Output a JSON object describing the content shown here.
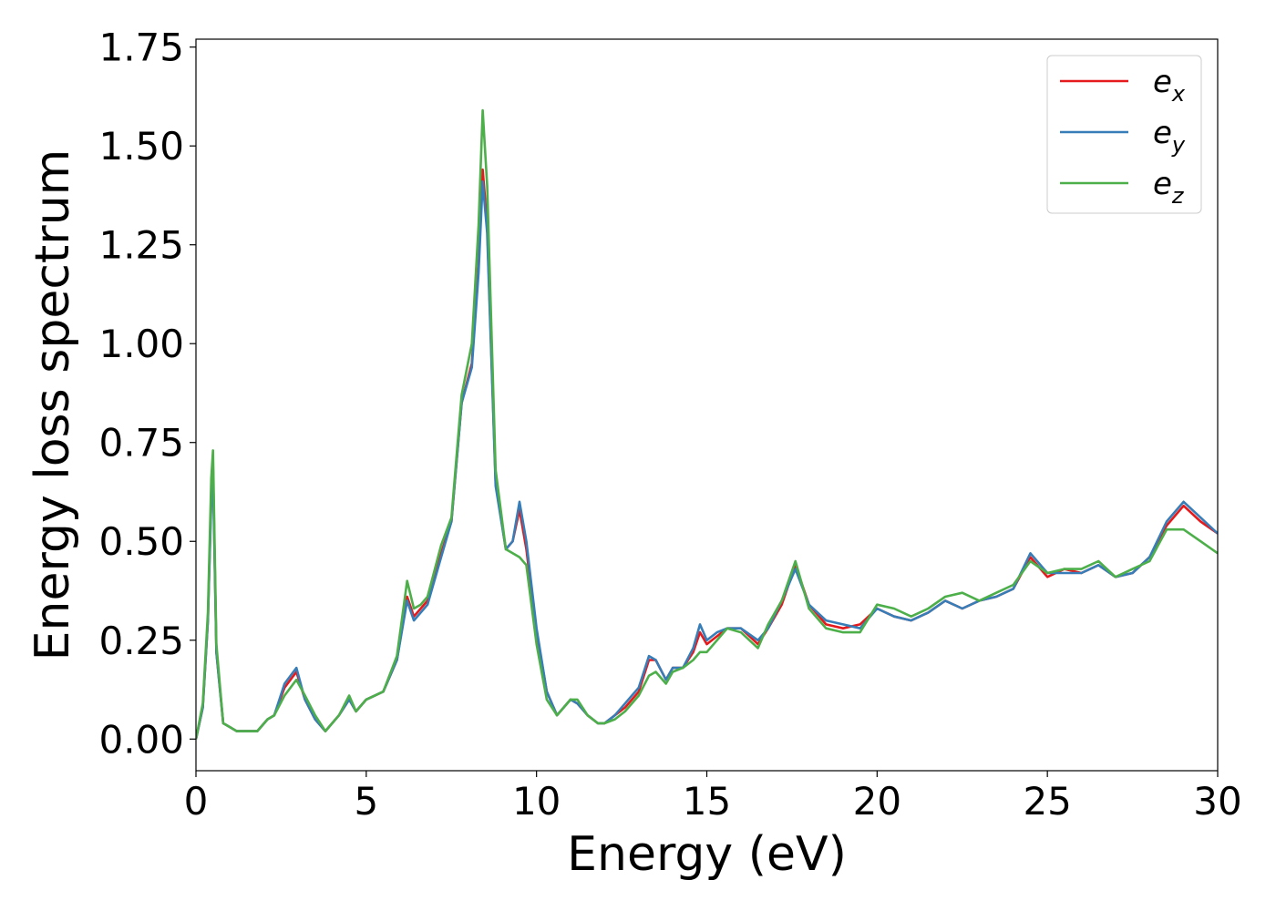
{
  "chart_data": {
    "type": "line",
    "title": "",
    "xlabel": "Energy (eV)",
    "ylabel": "Energy loss spectrum",
    "xlim": [
      0,
      30
    ],
    "ylim": [
      -0.08,
      1.77
    ],
    "x_ticks": [
      0,
      5,
      10,
      15,
      20,
      25,
      30
    ],
    "x_tick_labels": [
      "0",
      "5",
      "10",
      "15",
      "20",
      "25",
      "30"
    ],
    "y_ticks": [
      0.0,
      0.25,
      0.5,
      0.75,
      1.0,
      1.25,
      1.5,
      1.75
    ],
    "y_tick_labels": [
      "0.00",
      "0.25",
      "0.50",
      "0.75",
      "1.00",
      "1.25",
      "1.50",
      "1.75"
    ],
    "grid": false,
    "legend": {
      "placement": "top-right",
      "entries": [
        {
          "base": "e",
          "sub": "x",
          "color": "#e41a1c"
        },
        {
          "base": "e",
          "sub": "y",
          "color": "#377eb8"
        },
        {
          "base": "e",
          "sub": "z",
          "color": "#4daf4a"
        }
      ]
    },
    "series": [
      {
        "name": "e_x",
        "color": "#e41a1c",
        "x": [
          0,
          0.2,
          0.35,
          0.45,
          0.5,
          0.6,
          0.8,
          1.2,
          1.8,
          2.1,
          2.3,
          2.6,
          2.95,
          3.2,
          3.5,
          3.8,
          4.2,
          4.5,
          4.7,
          5.0,
          5.5,
          5.9,
          6.2,
          6.4,
          6.6,
          6.8,
          7.2,
          7.5,
          7.8,
          8.1,
          8.3,
          8.42,
          8.55,
          8.8,
          9.1,
          9.3,
          9.5,
          9.7,
          10.0,
          10.3,
          10.6,
          11.0,
          11.2,
          11.5,
          11.8,
          12.0,
          12.3,
          12.6,
          13.0,
          13.3,
          13.5,
          13.8,
          14.0,
          14.3,
          14.6,
          14.8,
          15.0,
          15.3,
          15.6,
          16.0,
          16.5,
          16.8,
          17.2,
          17.6,
          18.0,
          18.5,
          19.0,
          19.5,
          20.0,
          20.5,
          21.0,
          21.5,
          22.0,
          22.5,
          23.0,
          23.5,
          24.0,
          24.5,
          25.0,
          25.5,
          26.0,
          26.5,
          27.0,
          27.5,
          28.0,
          28.5,
          29.0,
          29.5,
          30.0
        ],
        "values": [
          0.0,
          0.08,
          0.3,
          0.62,
          0.69,
          0.22,
          0.04,
          0.02,
          0.02,
          0.05,
          0.06,
          0.13,
          0.17,
          0.1,
          0.05,
          0.02,
          0.06,
          0.1,
          0.07,
          0.1,
          0.12,
          0.2,
          0.36,
          0.31,
          0.33,
          0.35,
          0.47,
          0.55,
          0.85,
          0.95,
          1.2,
          1.44,
          1.3,
          0.65,
          0.48,
          0.5,
          0.58,
          0.48,
          0.27,
          0.12,
          0.06,
          0.1,
          0.09,
          0.06,
          0.04,
          0.04,
          0.06,
          0.08,
          0.12,
          0.2,
          0.2,
          0.15,
          0.18,
          0.18,
          0.22,
          0.27,
          0.24,
          0.26,
          0.28,
          0.28,
          0.24,
          0.28,
          0.34,
          0.44,
          0.34,
          0.29,
          0.28,
          0.29,
          0.33,
          0.31,
          0.3,
          0.32,
          0.35,
          0.33,
          0.35,
          0.36,
          0.38,
          0.46,
          0.41,
          0.43,
          0.42,
          0.44,
          0.41,
          0.42,
          0.46,
          0.54,
          0.59,
          0.55,
          0.52
        ]
      },
      {
        "name": "e_y",
        "color": "#377eb8",
        "x": [
          0,
          0.2,
          0.35,
          0.45,
          0.5,
          0.6,
          0.8,
          1.2,
          1.8,
          2.1,
          2.3,
          2.6,
          2.95,
          3.2,
          3.5,
          3.8,
          4.2,
          4.5,
          4.7,
          5.0,
          5.5,
          5.9,
          6.2,
          6.4,
          6.6,
          6.8,
          7.2,
          7.5,
          7.8,
          8.1,
          8.3,
          8.42,
          8.55,
          8.8,
          9.1,
          9.3,
          9.5,
          9.7,
          10.0,
          10.3,
          10.6,
          11.0,
          11.2,
          11.5,
          11.8,
          12.0,
          12.3,
          12.6,
          13.0,
          13.3,
          13.5,
          13.8,
          14.0,
          14.3,
          14.6,
          14.8,
          15.0,
          15.3,
          15.6,
          16.0,
          16.5,
          16.8,
          17.2,
          17.6,
          18.0,
          18.5,
          19.0,
          19.5,
          20.0,
          20.5,
          21.0,
          21.5,
          22.0,
          22.5,
          23.0,
          23.5,
          24.0,
          24.5,
          25.0,
          25.5,
          26.0,
          26.5,
          27.0,
          27.5,
          28.0,
          28.5,
          29.0,
          29.5,
          30.0
        ],
        "values": [
          0.0,
          0.08,
          0.3,
          0.6,
          0.67,
          0.22,
          0.04,
          0.02,
          0.02,
          0.05,
          0.06,
          0.14,
          0.18,
          0.1,
          0.05,
          0.02,
          0.06,
          0.1,
          0.07,
          0.1,
          0.12,
          0.2,
          0.35,
          0.3,
          0.32,
          0.34,
          0.46,
          0.55,
          0.85,
          0.94,
          1.18,
          1.41,
          1.28,
          0.64,
          0.48,
          0.5,
          0.6,
          0.5,
          0.28,
          0.12,
          0.06,
          0.1,
          0.09,
          0.06,
          0.04,
          0.04,
          0.06,
          0.09,
          0.13,
          0.21,
          0.2,
          0.15,
          0.18,
          0.18,
          0.23,
          0.29,
          0.25,
          0.27,
          0.28,
          0.28,
          0.25,
          0.28,
          0.35,
          0.43,
          0.34,
          0.3,
          0.29,
          0.28,
          0.33,
          0.31,
          0.3,
          0.32,
          0.35,
          0.33,
          0.35,
          0.36,
          0.38,
          0.47,
          0.42,
          0.42,
          0.42,
          0.44,
          0.41,
          0.42,
          0.46,
          0.55,
          0.6,
          0.56,
          0.52
        ]
      },
      {
        "name": "e_z",
        "color": "#4daf4a",
        "x": [
          0,
          0.2,
          0.35,
          0.45,
          0.5,
          0.6,
          0.8,
          1.2,
          1.8,
          2.1,
          2.3,
          2.6,
          2.95,
          3.2,
          3.5,
          3.8,
          4.2,
          4.5,
          4.7,
          5.0,
          5.5,
          5.9,
          6.2,
          6.4,
          6.6,
          6.8,
          7.2,
          7.5,
          7.8,
          8.1,
          8.3,
          8.42,
          8.55,
          8.8,
          9.1,
          9.3,
          9.5,
          9.7,
          10.0,
          10.3,
          10.6,
          11.0,
          11.2,
          11.5,
          11.8,
          12.0,
          12.3,
          12.6,
          13.0,
          13.3,
          13.5,
          13.8,
          14.0,
          14.3,
          14.6,
          14.8,
          15.0,
          15.3,
          15.6,
          16.0,
          16.5,
          16.8,
          17.2,
          17.6,
          18.0,
          18.5,
          19.0,
          19.5,
          20.0,
          20.5,
          21.0,
          21.5,
          22.0,
          22.5,
          23.0,
          23.5,
          24.0,
          24.5,
          25.0,
          25.5,
          26.0,
          26.5,
          27.0,
          27.5,
          28.0,
          28.5,
          29.0,
          29.5,
          30.0
        ],
        "values": [
          0.0,
          0.09,
          0.32,
          0.66,
          0.73,
          0.24,
          0.04,
          0.02,
          0.02,
          0.05,
          0.06,
          0.11,
          0.15,
          0.11,
          0.06,
          0.02,
          0.06,
          0.11,
          0.07,
          0.1,
          0.12,
          0.21,
          0.4,
          0.33,
          0.34,
          0.36,
          0.49,
          0.56,
          0.87,
          1.0,
          1.3,
          1.59,
          1.4,
          0.68,
          0.48,
          0.47,
          0.46,
          0.44,
          0.24,
          0.1,
          0.06,
          0.1,
          0.1,
          0.06,
          0.04,
          0.04,
          0.05,
          0.07,
          0.11,
          0.16,
          0.17,
          0.14,
          0.17,
          0.18,
          0.2,
          0.22,
          0.22,
          0.25,
          0.28,
          0.27,
          0.23,
          0.29,
          0.35,
          0.45,
          0.33,
          0.28,
          0.27,
          0.27,
          0.34,
          0.33,
          0.31,
          0.33,
          0.36,
          0.37,
          0.35,
          0.37,
          0.39,
          0.45,
          0.42,
          0.43,
          0.43,
          0.45,
          0.41,
          0.43,
          0.45,
          0.53,
          0.53,
          0.5,
          0.47
        ]
      }
    ]
  }
}
